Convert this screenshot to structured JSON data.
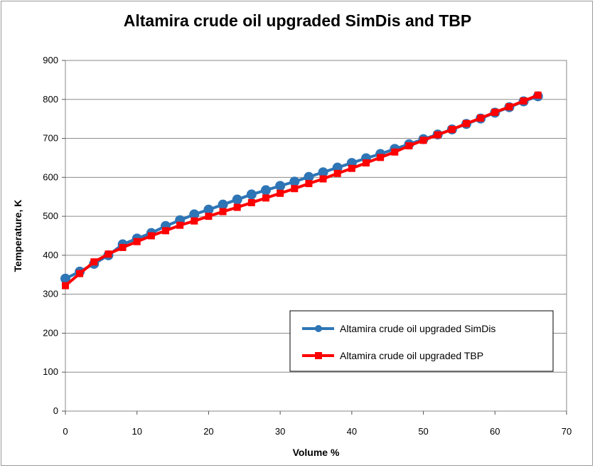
{
  "chart_data": {
    "type": "line",
    "title": "Altamira crude oil upgraded SimDis and TBP",
    "xlabel": "Volume %",
    "ylabel": "Temperature, K",
    "xlim": [
      0,
      70
    ],
    "ylim": [
      0,
      900
    ],
    "xticks": [
      "0",
      "10",
      "20",
      "30",
      "40",
      "50",
      "60",
      "70"
    ],
    "yticks": [
      "0",
      "100",
      "200",
      "300",
      "400",
      "500",
      "600",
      "700",
      "800",
      "900"
    ],
    "grid": "horizontal",
    "legend_position": "bottom-right",
    "series": [
      {
        "name": "Altamira crude oil upgraded SimDis",
        "color": "#2E75B6",
        "marker": "circle",
        "x": [
          0,
          2,
          4,
          6,
          8,
          10,
          12,
          14,
          16,
          18,
          20,
          22,
          24,
          26,
          28,
          30,
          32,
          34,
          36,
          38,
          40,
          42,
          44,
          46,
          48,
          50,
          52,
          54,
          56,
          58,
          60,
          62,
          64,
          66
        ],
        "y": [
          340,
          358,
          378,
          400,
          428,
          443,
          457,
          475,
          490,
          505,
          517,
          530,
          543,
          556,
          567,
          578,
          589,
          601,
          613,
          625,
          637,
          649,
          660,
          673,
          685,
          698,
          710,
          723,
          737,
          751,
          766,
          780,
          795,
          808
        ]
      },
      {
        "name": "Altamira crude oil upgraded TBP",
        "color": "#FF0000",
        "marker": "square",
        "x": [
          0,
          2,
          4,
          6,
          8,
          10,
          12,
          14,
          16,
          18,
          20,
          22,
          24,
          26,
          28,
          30,
          32,
          34,
          36,
          38,
          40,
          42,
          44,
          46,
          48,
          50,
          52,
          54,
          56,
          58,
          60,
          62,
          64,
          66
        ],
        "y": [
          322,
          353,
          383,
          403,
          420,
          435,
          450,
          463,
          477,
          488,
          500,
          512,
          523,
          535,
          547,
          559,
          571,
          584,
          596,
          610,
          623,
          637,
          651,
          665,
          681,
          695,
          709,
          723,
          738,
          752,
          767,
          781,
          796,
          811
        ]
      }
    ]
  }
}
